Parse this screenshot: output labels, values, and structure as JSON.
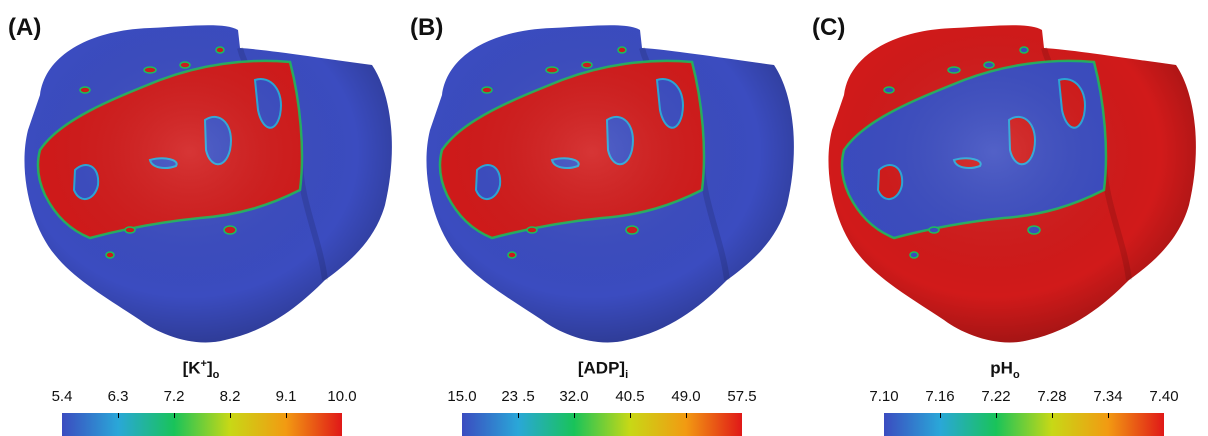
{
  "panels": [
    {
      "label": "(A)",
      "colorbar": {
        "title_main": "[K",
        "title_sup": "+",
        "title_close": "]",
        "title_sub": "o",
        "ticks": [
          "5.4",
          "6.3",
          "7.2",
          "8.2",
          "9.1",
          "10.0"
        ]
      },
      "base_color": "#3b4cc0",
      "patch_color": "#d11a1a"
    },
    {
      "label": "(B)",
      "colorbar": {
        "title_main": "[ADP]",
        "title_sup": "",
        "title_close": "",
        "title_sub": "i",
        "ticks": [
          "15.0",
          "23 .5",
          "32.0",
          "40.5",
          "49.0",
          "57.5"
        ]
      },
      "base_color": "#3b4cc0",
      "patch_color": "#d11a1a"
    },
    {
      "label": "(C)",
      "colorbar": {
        "title_main": "pH",
        "title_sup": "",
        "title_close": "",
        "title_sub": "o",
        "ticks": [
          "7.10",
          "7.16",
          "7.22",
          "7.28",
          "7.34",
          "7.40"
        ]
      },
      "base_color": "#d11a1a",
      "patch_color": "#3b4cc0"
    }
  ],
  "colormap": [
    "#3b4cc0",
    "#2aa7d8",
    "#19c35a",
    "#c8d816",
    "#f29a12",
    "#e01818"
  ]
}
